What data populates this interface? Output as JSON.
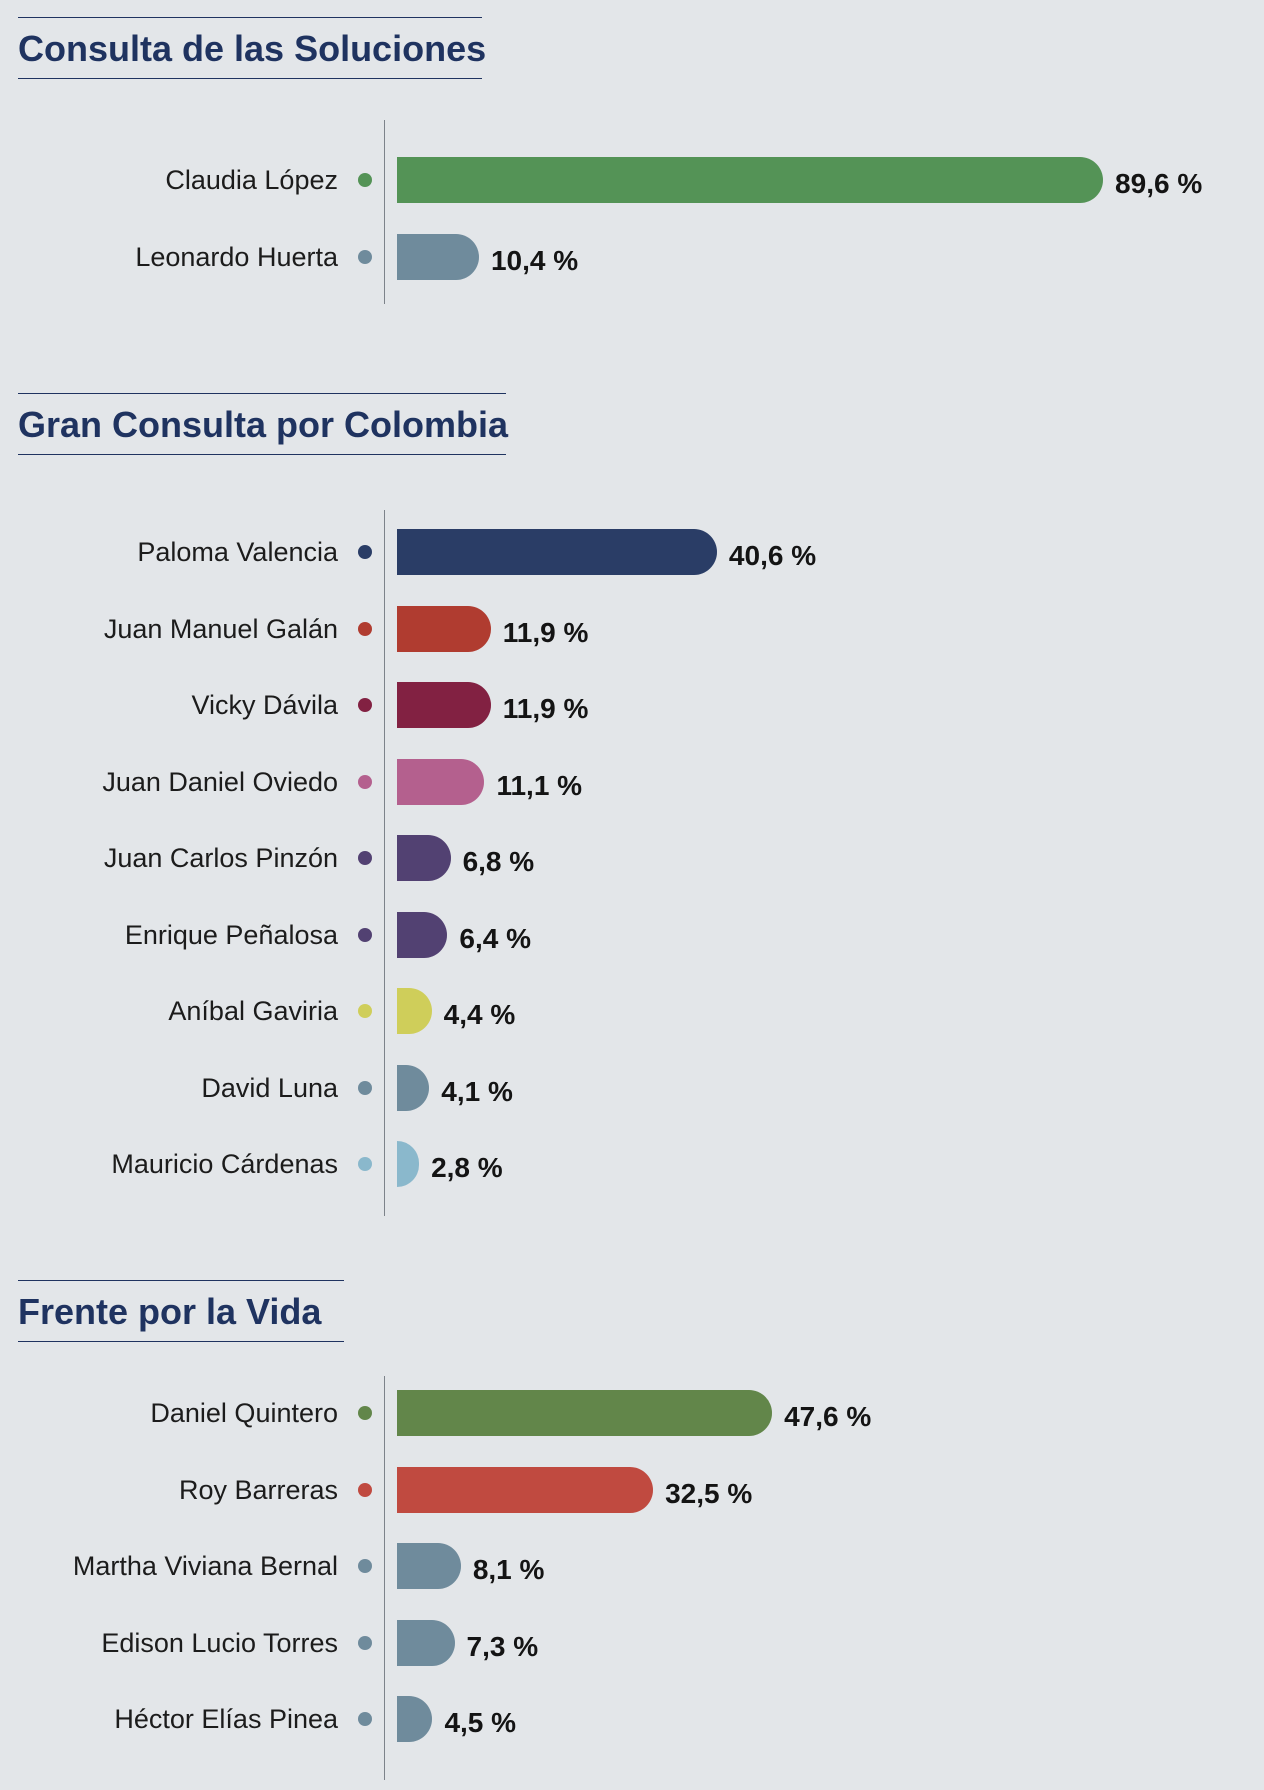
{
  "chart_data": [
    {
      "type": "bar",
      "orientation": "horizontal",
      "title": "Consulta de las Soluciones",
      "categories": [
        "Claudia López",
        "Leonardo Huerta"
      ],
      "values": [
        89.6,
        10.4
      ],
      "value_labels": [
        "89,6 %",
        "10,4 %"
      ],
      "colors": [
        "#549356",
        "#6f8b9c"
      ],
      "unit": "%"
    },
    {
      "type": "bar",
      "orientation": "horizontal",
      "title": "Gran Consulta por Colombia",
      "categories": [
        "Paloma Valencia",
        "Juan Manuel Galán",
        "Vicky Dávila",
        "Juan Daniel Oviedo",
        "Juan Carlos Pinzón",
        "Enrique Peñalosa",
        "Aníbal Gaviria",
        "David Luna",
        "Mauricio Cárdenas"
      ],
      "values": [
        40.6,
        11.9,
        11.9,
        11.1,
        6.8,
        6.4,
        4.4,
        4.1,
        2.8
      ],
      "value_labels": [
        "40,6 %",
        "11,9 %",
        "11,9 %",
        "11,1 %",
        "6,8 %",
        "6,4 %",
        "4,4 %",
        "4,1 %",
        "2,8 %"
      ],
      "colors": [
        "#2a3d66",
        "#b03c30",
        "#822142",
        "#b4608e",
        "#524172",
        "#524172",
        "#cfce5a",
        "#6f8b9c",
        "#8ab8cc"
      ],
      "unit": "%"
    },
    {
      "type": "bar",
      "orientation": "horizontal",
      "title": "Frente por la Vida",
      "categories": [
        "Daniel Quintero",
        "Roy Barreras",
        "Martha Viviana Bernal",
        "Edison Lucio Torres",
        "Héctor Elías Pinea"
      ],
      "values": [
        47.6,
        32.5,
        8.1,
        7.3,
        4.5
      ],
      "value_labels": [
        "47,6 %",
        "32,5 %",
        "8,1 %",
        "7,3 %",
        "4,5 %"
      ],
      "colors": [
        "#62864a",
        "#c04a40",
        "#6f8b9c",
        "#6f8b9c",
        "#6f8b9c"
      ],
      "unit": "%"
    }
  ]
}
